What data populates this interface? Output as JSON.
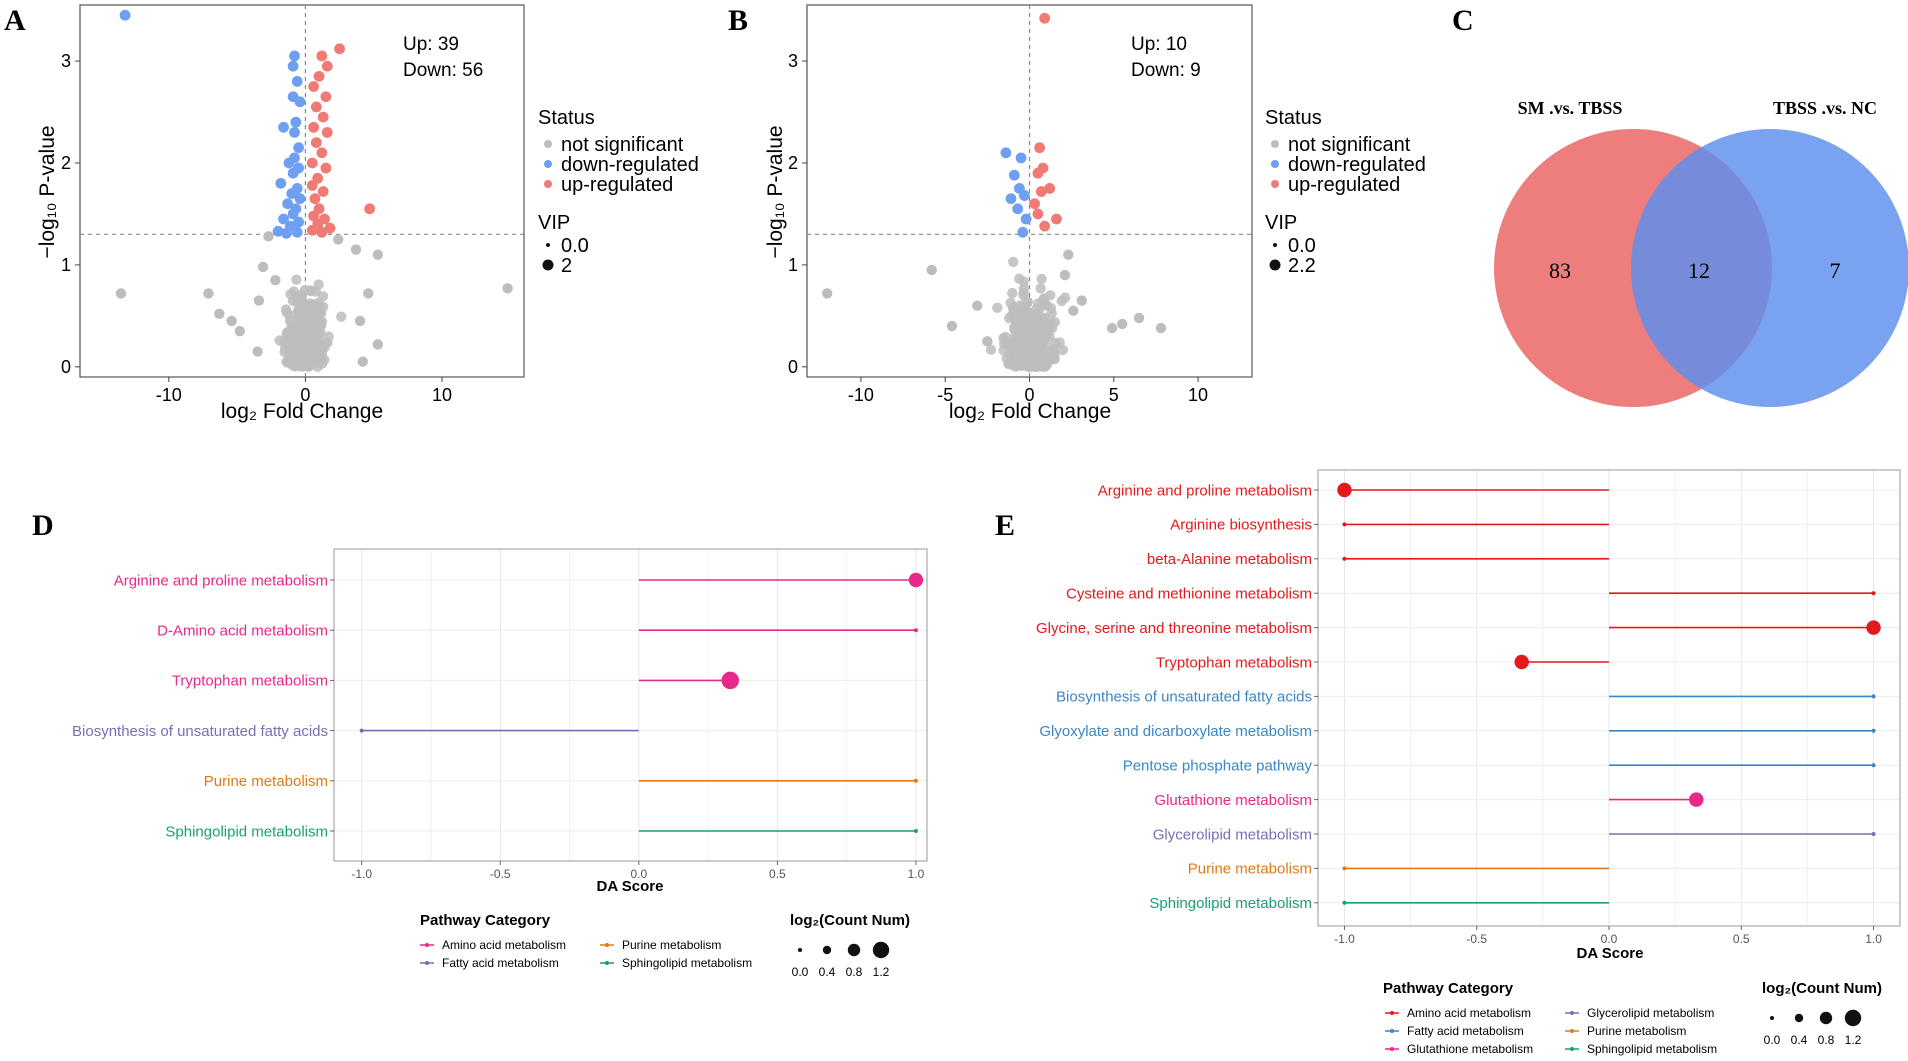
{
  "panel_letters": [
    "A",
    "B",
    "C",
    "D",
    "E"
  ],
  "colors": {
    "not_significant": "#bdbdbd",
    "down": "#6f9ff0",
    "up": "#f07b74",
    "venn_left": "#ec7070",
    "venn_right": "#5b8fee",
    "amino": "#e31a1c",
    "amino_d": "#e7298a",
    "fatty": "#7570b3",
    "fatty_e": "#3a86c8",
    "purine": "#e07b14",
    "sphingo": "#1b9e77",
    "gluta": "#e7298a",
    "glycero": "#7570b3",
    "guide": "#999999"
  },
  "chart_data": [
    {
      "panel": "A",
      "type": "scatter",
      "xlabel": "log₂ Fold Change",
      "ylabel": "−log₁₀ P-value",
      "xlim": [
        -16.5,
        16
      ],
      "ylim": [
        -0.1,
        3.55
      ],
      "xticks": [
        -10,
        0,
        10
      ],
      "yticks": [
        0,
        1,
        2,
        3
      ],
      "hline": 1.3,
      "vline": 0,
      "annotation": {
        "up": "Up: 39",
        "down": "Down: 56"
      },
      "legend": {
        "status_title": "Status",
        "status_items": [
          "not significant",
          "down-regulated",
          "up-regulated"
        ],
        "vip_title": "VIP",
        "vip_items": [
          "0.0",
          "2"
        ]
      },
      "highlight_points": {
        "down": [
          [
            -13.2,
            3.45
          ],
          [
            -0.8,
            3.05
          ],
          [
            -0.9,
            2.95
          ],
          [
            -0.6,
            2.8
          ],
          [
            -0.9,
            2.65
          ],
          [
            -0.4,
            2.6
          ],
          [
            -0.7,
            2.4
          ],
          [
            -1.6,
            2.35
          ],
          [
            -0.8,
            2.3
          ],
          [
            -0.5,
            2.15
          ],
          [
            -0.8,
            2.05
          ],
          [
            -1.2,
            2.0
          ],
          [
            -0.5,
            1.95
          ],
          [
            -0.9,
            1.9
          ],
          [
            -1.8,
            1.8
          ],
          [
            -0.6,
            1.75
          ],
          [
            -1.0,
            1.7
          ],
          [
            -0.4,
            1.65
          ],
          [
            -1.3,
            1.6
          ],
          [
            -0.7,
            1.55
          ],
          [
            -0.9,
            1.5
          ],
          [
            -1.6,
            1.45
          ],
          [
            -0.5,
            1.42
          ],
          [
            -1.1,
            1.38
          ],
          [
            -2.0,
            1.33
          ],
          [
            -0.6,
            1.32
          ],
          [
            -1.4,
            1.31
          ]
        ],
        "up": [
          [
            2.5,
            3.12
          ],
          [
            1.2,
            3.05
          ],
          [
            1.6,
            2.95
          ],
          [
            1.0,
            2.85
          ],
          [
            0.6,
            2.75
          ],
          [
            1.5,
            2.65
          ],
          [
            0.8,
            2.55
          ],
          [
            1.3,
            2.45
          ],
          [
            0.6,
            2.35
          ],
          [
            1.6,
            2.3
          ],
          [
            0.8,
            2.2
          ],
          [
            1.2,
            2.1
          ],
          [
            0.5,
            2.0
          ],
          [
            1.5,
            1.95
          ],
          [
            0.9,
            1.85
          ],
          [
            0.5,
            1.78
          ],
          [
            1.3,
            1.72
          ],
          [
            0.7,
            1.65
          ],
          [
            4.7,
            1.55
          ],
          [
            1.0,
            1.55
          ],
          [
            0.6,
            1.48
          ],
          [
            1.4,
            1.45
          ],
          [
            0.9,
            1.4
          ],
          [
            1.8,
            1.36
          ],
          [
            0.5,
            1.34
          ],
          [
            1.2,
            1.32
          ]
        ]
      },
      "outlier_points": [
        [
          -13.5,
          0.72
        ],
        [
          -5.4,
          0.45
        ],
        [
          -6.3,
          0.52
        ],
        [
          -4.8,
          0.35
        ],
        [
          -3.4,
          0.65
        ],
        [
          -7.1,
          0.72
        ],
        [
          -3.1,
          0.98
        ],
        [
          -2.7,
          1.28
        ],
        [
          -2.2,
          0.85
        ],
        [
          4.6,
          0.72
        ],
        [
          5.3,
          0.22
        ],
        [
          4.0,
          0.45
        ],
        [
          14.8,
          0.77
        ],
        [
          3.7,
          1.15
        ],
        [
          5.3,
          1.1
        ],
        [
          2.4,
          1.25
        ],
        [
          -3.5,
          0.15
        ],
        [
          4.2,
          0.05
        ]
      ]
    },
    {
      "panel": "B",
      "type": "scatter",
      "xlabel": "log₂ Fold Change",
      "ylabel": "−log₁₀ P-value",
      "xlim": [
        -13.2,
        13.2
      ],
      "ylim": [
        -0.1,
        3.55
      ],
      "xticks": [
        -10,
        -5,
        0,
        5,
        10
      ],
      "yticks": [
        0,
        1,
        2,
        3
      ],
      "hline": 1.3,
      "vline": 0,
      "annotation": {
        "up": "Up: 10",
        "down": "Down: 9"
      },
      "legend": {
        "status_title": "Status",
        "status_items": [
          "not significant",
          "down-regulated",
          "up-regulated"
        ],
        "vip_title": "VIP",
        "vip_items": [
          "0.0",
          "2.2"
        ]
      },
      "highlight_points": {
        "down": [
          [
            -1.4,
            2.1
          ],
          [
            -0.5,
            2.05
          ],
          [
            -0.9,
            1.88
          ],
          [
            -0.6,
            1.75
          ],
          [
            -0.3,
            1.68
          ],
          [
            -1.1,
            1.65
          ],
          [
            -0.7,
            1.55
          ],
          [
            -0.2,
            1.45
          ],
          [
            -0.4,
            1.32
          ]
        ],
        "up": [
          [
            0.9,
            3.42
          ],
          [
            0.6,
            2.15
          ],
          [
            0.8,
            1.95
          ],
          [
            0.5,
            1.9
          ],
          [
            1.2,
            1.75
          ],
          [
            0.7,
            1.72
          ],
          [
            0.3,
            1.6
          ],
          [
            1.6,
            1.45
          ],
          [
            0.5,
            1.5
          ],
          [
            0.9,
            1.38
          ]
        ]
      },
      "outlier_points": [
        [
          -12.0,
          0.72
        ],
        [
          -5.8,
          0.95
        ],
        [
          -4.6,
          0.4
        ],
        [
          4.9,
          0.38
        ],
        [
          5.5,
          0.42
        ],
        [
          6.5,
          0.48
        ],
        [
          7.8,
          0.38
        ],
        [
          -2.5,
          0.25
        ],
        [
          2.1,
          0.9
        ],
        [
          2.6,
          0.55
        ],
        [
          3.1,
          0.65
        ],
        [
          -3.1,
          0.6
        ],
        [
          2.3,
          1.1
        ]
      ]
    },
    {
      "panel": "C",
      "type": "venn",
      "sets": [
        {
          "name": "SM .vs. TBSS",
          "only": "83"
        },
        {
          "name": "TBSS .vs. NC",
          "only": "7"
        }
      ],
      "intersection": "12"
    },
    {
      "panel": "D",
      "type": "lollipop",
      "xlabel": "DA Score",
      "xlim": [
        -1.1,
        1.04
      ],
      "xticks": [
        -1.0,
        -0.5,
        0.0,
        0.5,
        1.0
      ],
      "xtick_labels": [
        "-1.0",
        "-0.5",
        "0.0",
        "0.5",
        "1.0"
      ],
      "rows": [
        {
          "pathway": "Arginine and proline metabolism",
          "category": "amino",
          "score": 1.0,
          "count": 1.0
        },
        {
          "pathway": "D-Amino acid metabolism",
          "category": "amino",
          "score": 1.0,
          "count": 0.0
        },
        {
          "pathway": "Tryptophan metabolism",
          "category": "amino",
          "score": 0.33,
          "count": 1.3
        },
        {
          "pathway": "Biosynthesis of unsaturated fatty acids",
          "category": "fatty",
          "score": -1.0,
          "count": 0.0
        },
        {
          "pathway": "Purine metabolism",
          "category": "purine",
          "score": 1.0,
          "count": 0.0
        },
        {
          "pathway": "Sphingolipid metabolism",
          "category": "sphingo",
          "score": 1.0,
          "count": 0.0
        }
      ],
      "legend_title": "Pathway Category",
      "legend_items": [
        {
          "key": "amino",
          "label": "Amino acid metabolism"
        },
        {
          "key": "purine",
          "label": "Purine metabolism"
        },
        {
          "key": "fatty",
          "label": "Fatty acid metabolism"
        },
        {
          "key": "sphingo",
          "label": "Sphingolipid metabolism"
        }
      ],
      "size_title": "log₂(Count Num)",
      "size_values": [
        "0.0",
        "0.4",
        "0.8",
        "1.2"
      ]
    },
    {
      "panel": "E",
      "type": "lollipop",
      "xlabel": "DA Score",
      "xlim": [
        -1.1,
        1.1
      ],
      "xticks": [
        -1.0,
        -0.5,
        0.0,
        0.5,
        1.0
      ],
      "xtick_labels": [
        "-1.0",
        "-0.5",
        "0.0",
        "0.5",
        "1.0"
      ],
      "rows": [
        {
          "pathway": "Arginine and proline metabolism",
          "category": "amino",
          "score": -1.0,
          "count": 1.0
        },
        {
          "pathway": "Arginine biosynthesis",
          "category": "amino",
          "score": -1.0,
          "count": 0.0
        },
        {
          "pathway": "beta-Alanine metabolism",
          "category": "amino",
          "score": -1.0,
          "count": 0.0
        },
        {
          "pathway": "Cysteine and methionine metabolism",
          "category": "amino",
          "score": 1.0,
          "count": 0.0
        },
        {
          "pathway": "Glycine, serine and threonine metabolism",
          "category": "amino",
          "score": 1.0,
          "count": 1.0
        },
        {
          "pathway": "Tryptophan metabolism",
          "category": "amino",
          "score": -0.33,
          "count": 1.0
        },
        {
          "pathway": "Biosynthesis of unsaturated fatty acids",
          "category": "fatty",
          "score": 1.0,
          "count": 0.0
        },
        {
          "pathway": "Glyoxylate and dicarboxylate metabolism",
          "category": "fatty",
          "score": 1.0,
          "count": 0.0
        },
        {
          "pathway": "Pentose phosphate pathway",
          "category": "fatty",
          "score": 1.0,
          "count": 0.0
        },
        {
          "pathway": "Glutathione metabolism",
          "category": "gluta",
          "score": 0.33,
          "count": 1.0
        },
        {
          "pathway": "Glycerolipid metabolism",
          "category": "glycero",
          "score": 1.0,
          "count": 0.0
        },
        {
          "pathway": "Purine metabolism",
          "category": "purine",
          "score": -1.0,
          "count": 0.0
        },
        {
          "pathway": "Sphingolipid metabolism",
          "category": "sphingo",
          "score": -1.0,
          "count": 0.0
        }
      ],
      "legend_title": "Pathway Category",
      "legend_items": [
        {
          "key": "amino",
          "label": "Amino acid metabolism"
        },
        {
          "key": "glycero",
          "label": "Glycerolipid metabolism"
        },
        {
          "key": "fatty",
          "label": "Fatty acid metabolism"
        },
        {
          "key": "purine",
          "label": "Purine metabolism"
        },
        {
          "key": "gluta",
          "label": "Glutathione metabolism"
        },
        {
          "key": "sphingo",
          "label": "Sphingolipid metabolism"
        }
      ],
      "size_title": "log₂(Count Num)",
      "size_values": [
        "0.0",
        "0.4",
        "0.8",
        "1.2"
      ]
    }
  ]
}
